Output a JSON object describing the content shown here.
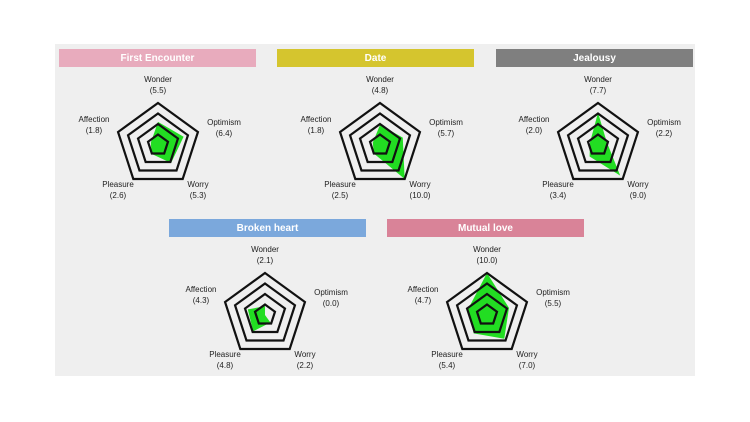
{
  "chart_data": [
    {
      "type": "radar",
      "title": "First Encounter",
      "title_color": "#e8abbd",
      "color": "#22dd22",
      "categories": [
        "Wonder",
        "Optimism",
        "Worry",
        "Pleasure",
        "Affection"
      ],
      "values": [
        5.5,
        6.4,
        5.3,
        2.6,
        1.8
      ],
      "value_labels": [
        "(5.5)",
        "(6.4)",
        "(5.3)",
        "(2.6)",
        "(1.8)"
      ],
      "rlim": [
        0,
        10
      ],
      "rticks": [
        2.5,
        5,
        7.5,
        10
      ]
    },
    {
      "type": "radar",
      "title": "Date",
      "title_color": "#d5c52e",
      "color": "#22dd22",
      "categories": [
        "Wonder",
        "Optimism",
        "Worry",
        "Pleasure",
        "Affection"
      ],
      "values": [
        4.8,
        5.7,
        10.0,
        2.5,
        1.8
      ],
      "value_labels": [
        "(4.8)",
        "(5.7)",
        "(10.0)",
        "(2.5)",
        "(1.8)"
      ],
      "rlim": [
        0,
        10
      ],
      "rticks": [
        2.5,
        5,
        7.5,
        10
      ]
    },
    {
      "type": "radar",
      "title": "Jealousy",
      "title_color": "#7f7f7f",
      "color": "#22dd22",
      "categories": [
        "Wonder",
        "Optimism",
        "Worry",
        "Pleasure",
        "Affection"
      ],
      "values": [
        7.7,
        2.2,
        9.0,
        3.4,
        2.0
      ],
      "value_labels": [
        "(7.7)",
        "(2.2)",
        "(9.0)",
        "(3.4)",
        "(2.0)"
      ],
      "rlim": [
        0,
        10
      ],
      "rticks": [
        2.5,
        5,
        7.5,
        10
      ]
    },
    {
      "type": "radar",
      "title": "Broken heart",
      "title_color": "#7ba8dc",
      "color": "#22dd22",
      "categories": [
        "Wonder",
        "Optimism",
        "Worry",
        "Pleasure",
        "Affection"
      ],
      "values": [
        2.1,
        0.0,
        2.2,
        4.8,
        4.3
      ],
      "value_labels": [
        "(2.1)",
        "(0.0)",
        "(2.2)",
        "(4.8)",
        "(4.3)"
      ],
      "rlim": [
        0,
        10
      ],
      "rticks": [
        2.5,
        5,
        7.5,
        10
      ]
    },
    {
      "type": "radar",
      "title": "Mutual love",
      "title_color": "#d98398",
      "color": "#22dd22",
      "categories": [
        "Wonder",
        "Optimism",
        "Worry",
        "Pleasure",
        "Affection"
      ],
      "values": [
        10.0,
        5.5,
        7.0,
        5.4,
        4.7
      ],
      "value_labels": [
        "(10.0)",
        "(5.5)",
        "(7.0)",
        "(5.4)",
        "(4.7)"
      ],
      "rlim": [
        0,
        10
      ],
      "rticks": [
        2.5,
        5,
        7.5,
        10
      ]
    }
  ]
}
